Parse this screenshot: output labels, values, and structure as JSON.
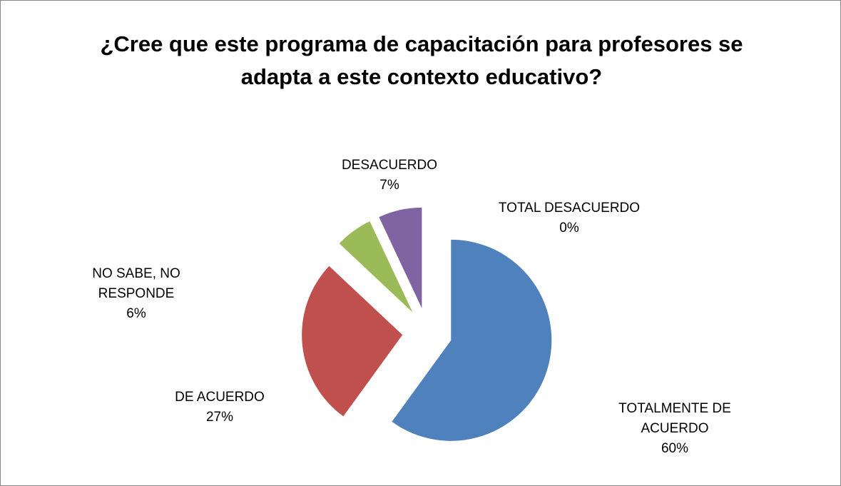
{
  "chart_data": {
    "type": "pie",
    "title": "¿Cree que este programa de capacitación para profesores se adapta a este contexto educativo?",
    "categories": [
      "TOTALMENTE DE ACUERDO",
      "DE ACUERDO",
      "NO SABE, NO RESPONDE",
      "DESACUERDO",
      "TOTAL DESACUERDO"
    ],
    "values": [
      60,
      27,
      6,
      7,
      0
    ],
    "value_labels": [
      "60%",
      "27%",
      "6%",
      "7%",
      "0%"
    ],
    "colors": [
      "#4f81bd",
      "#c0504d",
      "#9bbb59",
      "#8064a2",
      "#4bacc6"
    ],
    "exploded": true
  }
}
